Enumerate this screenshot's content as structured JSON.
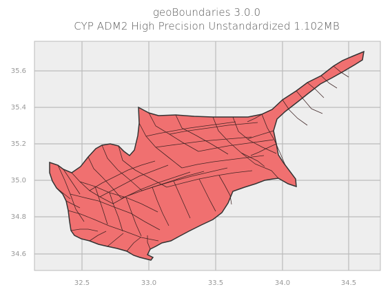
{
  "map": {
    "title_line_1": "geoBoundaries 3.0.0",
    "title_line_2": "CYP ADM2 High Precision Unstandardized 1.102MB",
    "x_ticks": [
      "32.5",
      "33.0",
      "33.5",
      "34.0",
      "34.5"
    ],
    "y_ticks": [
      "35.6",
      "35.4",
      "35.2",
      "35.0",
      "34.8",
      "34.6"
    ],
    "colors": {
      "background": "#eeeeee",
      "grid": "#bbbbbb",
      "fill": "#f07070",
      "stroke": "#333333"
    }
  }
}
